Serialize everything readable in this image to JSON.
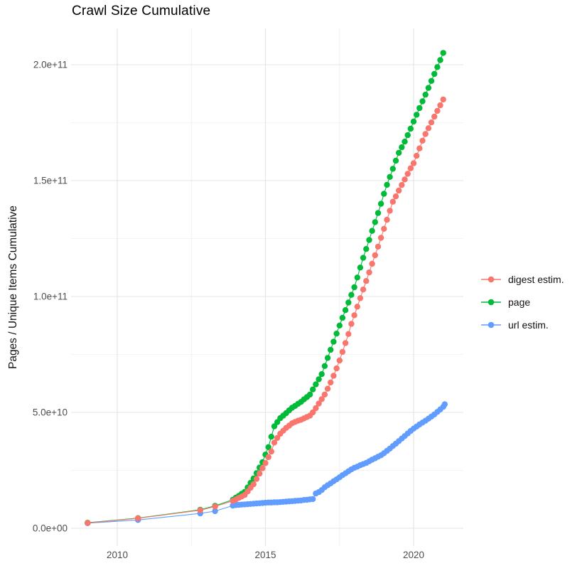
{
  "chart_data": {
    "type": "scatter",
    "title": "Crawl Size Cumulative",
    "xlabel": "",
    "ylabel": "Pages / Unique Items Cumulative",
    "value_unit": "1e9 (billions of items)",
    "xlim": [
      2008.4,
      2021.7
    ],
    "ylim_e9": [
      0,
      215
    ],
    "grid": "on",
    "legend_position": "right",
    "x_major_ticks": [
      {
        "value": 2010,
        "label": "2010"
      },
      {
        "value": 2015,
        "label": "2015"
      },
      {
        "value": 2020,
        "label": "2020"
      }
    ],
    "x_minor_ticks": [
      2012.5,
      2017.5
    ],
    "y_major_ticks": [
      {
        "value_e9": 0,
        "label": "0.0e+00"
      },
      {
        "value_e9": 50,
        "label": "5.0e+10"
      },
      {
        "value_e9": 100,
        "label": "1.0e+11"
      },
      {
        "value_e9": 150,
        "label": "1.5e+11"
      },
      {
        "value_e9": 200,
        "label": "2.0e+11"
      }
    ],
    "y_minor_ticks_e9": [
      25,
      75,
      125,
      175
    ],
    "series": [
      {
        "name": "digest estim.",
        "color": "#F8766D",
        "points_year_value_e9": [
          [
            2009.0,
            2.3
          ],
          [
            2010.7,
            4.3
          ],
          [
            2012.8,
            7.8
          ],
          [
            2013.3,
            9.4
          ],
          [
            2013.9,
            11.8
          ],
          [
            2014.0,
            12.4
          ],
          [
            2014.1,
            13.1
          ],
          [
            2014.2,
            13.7
          ],
          [
            2014.3,
            14.4
          ],
          [
            2014.4,
            15.9
          ],
          [
            2014.5,
            17.5
          ],
          [
            2014.6,
            19.0
          ],
          [
            2014.7,
            21.3
          ],
          [
            2014.8,
            23.6
          ],
          [
            2014.9,
            25.9
          ],
          [
            2015.0,
            28.1
          ],
          [
            2015.1,
            30.7
          ],
          [
            2015.2,
            33.1
          ],
          [
            2015.3,
            37.0
          ],
          [
            2015.4,
            39.0
          ],
          [
            2015.5,
            40.8
          ],
          [
            2015.6,
            42.1
          ],
          [
            2015.7,
            43.3
          ],
          [
            2015.8,
            44.3
          ],
          [
            2015.9,
            45.3
          ],
          [
            2016.0,
            45.9
          ],
          [
            2016.1,
            46.4
          ],
          [
            2016.2,
            46.8
          ],
          [
            2016.3,
            47.4
          ],
          [
            2016.4,
            48.0
          ],
          [
            2016.5,
            48.6
          ],
          [
            2016.6,
            50.0
          ],
          [
            2016.7,
            51.8
          ],
          [
            2016.8,
            53.8
          ],
          [
            2016.9,
            55.7
          ],
          [
            2017.0,
            57.7
          ],
          [
            2017.1,
            60.2
          ],
          [
            2017.2,
            62.9
          ],
          [
            2017.3,
            65.8
          ],
          [
            2017.4,
            69.0
          ],
          [
            2017.5,
            72.4
          ],
          [
            2017.6,
            76.1
          ],
          [
            2017.7,
            79.9
          ],
          [
            2017.8,
            83.8
          ],
          [
            2017.9,
            88.2
          ],
          [
            2018.0,
            91.9
          ],
          [
            2018.1,
            95.6
          ],
          [
            2018.2,
            99.3
          ],
          [
            2018.3,
            103.0
          ],
          [
            2018.4,
            106.7
          ],
          [
            2018.5,
            110.4
          ],
          [
            2018.6,
            114.1
          ],
          [
            2018.7,
            117.8
          ],
          [
            2018.8,
            121.5
          ],
          [
            2018.9,
            125.3
          ],
          [
            2019.0,
            129.2
          ],
          [
            2019.1,
            133.1
          ],
          [
            2019.2,
            137.0
          ],
          [
            2019.3,
            140.9
          ],
          [
            2019.4,
            143.2
          ],
          [
            2019.5,
            145.7
          ],
          [
            2019.6,
            148.1
          ],
          [
            2019.7,
            150.5
          ],
          [
            2019.8,
            152.9
          ],
          [
            2019.9,
            155.3
          ],
          [
            2020.0,
            157.5
          ],
          [
            2020.1,
            160.7
          ],
          [
            2020.2,
            163.9
          ],
          [
            2020.3,
            167.2
          ],
          [
            2020.4,
            170.1
          ],
          [
            2020.5,
            172.6
          ],
          [
            2020.6,
            175.1
          ],
          [
            2020.7,
            177.6
          ],
          [
            2020.8,
            180.1
          ],
          [
            2020.9,
            182.5
          ],
          [
            2021.0,
            185.0
          ]
        ]
      },
      {
        "name": "page",
        "color": "#00BA38",
        "points_year_value_e9": [
          [
            2009.0,
            2.4
          ],
          [
            2010.7,
            4.4
          ],
          [
            2012.8,
            8.0
          ],
          [
            2013.3,
            9.7
          ],
          [
            2013.9,
            12.3
          ],
          [
            2014.0,
            13.2
          ],
          [
            2014.1,
            14.0
          ],
          [
            2014.2,
            14.9
          ],
          [
            2014.3,
            15.7
          ],
          [
            2014.4,
            17.6
          ],
          [
            2014.5,
            19.6
          ],
          [
            2014.6,
            21.5
          ],
          [
            2014.7,
            23.8
          ],
          [
            2014.8,
            26.2
          ],
          [
            2014.9,
            28.5
          ],
          [
            2015.0,
            31.8
          ],
          [
            2015.1,
            35.0
          ],
          [
            2015.2,
            39.5
          ],
          [
            2015.3,
            44.0
          ],
          [
            2015.4,
            45.8
          ],
          [
            2015.5,
            47.5
          ],
          [
            2015.6,
            48.6
          ],
          [
            2015.7,
            49.7
          ],
          [
            2015.8,
            50.9
          ],
          [
            2015.9,
            52.0
          ],
          [
            2016.0,
            52.8
          ],
          [
            2016.1,
            53.7
          ],
          [
            2016.2,
            54.5
          ],
          [
            2016.3,
            55.6
          ],
          [
            2016.4,
            56.6
          ],
          [
            2016.5,
            57.7
          ],
          [
            2016.6,
            59.9
          ],
          [
            2016.7,
            62.1
          ],
          [
            2016.8,
            64.3
          ],
          [
            2016.9,
            66.5
          ],
          [
            2017.0,
            70.0
          ],
          [
            2017.1,
            73.5
          ],
          [
            2017.2,
            77.0
          ],
          [
            2017.3,
            80.5
          ],
          [
            2017.4,
            84.0
          ],
          [
            2017.5,
            87.5
          ],
          [
            2017.6,
            90.8
          ],
          [
            2017.7,
            94.1
          ],
          [
            2017.8,
            97.4
          ],
          [
            2017.9,
            100.7
          ],
          [
            2018.0,
            104.0
          ],
          [
            2018.1,
            108.2
          ],
          [
            2018.2,
            112.5
          ],
          [
            2018.3,
            116.7
          ],
          [
            2018.4,
            120.5
          ],
          [
            2018.5,
            124.4
          ],
          [
            2018.6,
            128.3
          ],
          [
            2018.7,
            132.1
          ],
          [
            2018.8,
            136.0
          ],
          [
            2018.9,
            140.0
          ],
          [
            2019.0,
            144.3
          ],
          [
            2019.1,
            148.2
          ],
          [
            2019.2,
            151.6
          ],
          [
            2019.3,
            155.1
          ],
          [
            2019.4,
            158.6
          ],
          [
            2019.5,
            162.0
          ],
          [
            2019.6,
            164.4
          ],
          [
            2019.7,
            166.8
          ],
          [
            2019.8,
            169.6
          ],
          [
            2019.9,
            172.4
          ],
          [
            2020.0,
            175.5
          ],
          [
            2020.1,
            178.4
          ],
          [
            2020.2,
            181.3
          ],
          [
            2020.3,
            184.2
          ],
          [
            2020.4,
            187.1
          ],
          [
            2020.5,
            190.0
          ],
          [
            2020.6,
            193.0
          ],
          [
            2020.7,
            196.0
          ],
          [
            2020.8,
            199.0
          ],
          [
            2020.9,
            202.0
          ],
          [
            2021.0,
            205.1
          ]
        ]
      },
      {
        "name": "url estim.",
        "color": "#619CFF",
        "points_year_value_e9": [
          [
            2009.0,
            2.2
          ],
          [
            2010.7,
            3.6
          ],
          [
            2012.8,
            6.4
          ],
          [
            2013.3,
            7.4
          ],
          [
            2013.9,
            9.8
          ],
          [
            2014.0,
            10.0
          ],
          [
            2014.1,
            10.1
          ],
          [
            2014.2,
            10.2
          ],
          [
            2014.3,
            10.3
          ],
          [
            2014.4,
            10.4
          ],
          [
            2014.5,
            10.5
          ],
          [
            2014.6,
            10.6
          ],
          [
            2014.7,
            10.7
          ],
          [
            2014.8,
            10.8
          ],
          [
            2014.9,
            10.9
          ],
          [
            2015.0,
            11.0
          ],
          [
            2015.1,
            11.1
          ],
          [
            2015.2,
            11.1
          ],
          [
            2015.3,
            11.2
          ],
          [
            2015.4,
            11.2
          ],
          [
            2015.5,
            11.3
          ],
          [
            2015.6,
            11.4
          ],
          [
            2015.7,
            11.5
          ],
          [
            2015.8,
            11.6
          ],
          [
            2015.9,
            11.7
          ],
          [
            2016.0,
            11.8
          ],
          [
            2016.1,
            11.9
          ],
          [
            2016.2,
            12.0
          ],
          [
            2016.3,
            12.2
          ],
          [
            2016.4,
            12.3
          ],
          [
            2016.5,
            12.5
          ],
          [
            2016.6,
            12.6
          ],
          [
            2016.7,
            15.0
          ],
          [
            2016.8,
            15.6
          ],
          [
            2016.9,
            16.5
          ],
          [
            2017.0,
            17.7
          ],
          [
            2017.1,
            18.6
          ],
          [
            2017.2,
            19.4
          ],
          [
            2017.3,
            20.3
          ],
          [
            2017.4,
            21.1
          ],
          [
            2017.5,
            22.0
          ],
          [
            2017.6,
            22.9
          ],
          [
            2017.7,
            23.7
          ],
          [
            2017.8,
            24.6
          ],
          [
            2017.9,
            25.4
          ],
          [
            2018.0,
            26.1
          ],
          [
            2018.1,
            26.6
          ],
          [
            2018.2,
            27.2
          ],
          [
            2018.3,
            27.7
          ],
          [
            2018.4,
            28.2
          ],
          [
            2018.5,
            28.9
          ],
          [
            2018.6,
            29.6
          ],
          [
            2018.7,
            30.2
          ],
          [
            2018.8,
            30.9
          ],
          [
            2018.9,
            31.5
          ],
          [
            2019.0,
            32.4
          ],
          [
            2019.1,
            33.4
          ],
          [
            2019.2,
            34.4
          ],
          [
            2019.3,
            35.5
          ],
          [
            2019.4,
            36.5
          ],
          [
            2019.5,
            37.6
          ],
          [
            2019.6,
            38.7
          ],
          [
            2019.7,
            39.8
          ],
          [
            2019.8,
            40.9
          ],
          [
            2019.9,
            42.0
          ],
          [
            2020.0,
            43.0
          ],
          [
            2020.1,
            43.9
          ],
          [
            2020.2,
            44.8
          ],
          [
            2020.3,
            45.6
          ],
          [
            2020.4,
            46.4
          ],
          [
            2020.5,
            47.3
          ],
          [
            2020.6,
            48.2
          ],
          [
            2020.7,
            49.1
          ],
          [
            2020.8,
            50.2
          ],
          [
            2020.9,
            51.3
          ],
          [
            2021.0,
            52.4
          ],
          [
            2021.05,
            53.5
          ]
        ]
      }
    ],
    "colors": {
      "background": "#FFFFFF",
      "grid_major": "#E4E4E4",
      "grid_minor": "#EFEFEF",
      "axis_text": "#4D4D4D",
      "title_text": "#000000"
    }
  }
}
